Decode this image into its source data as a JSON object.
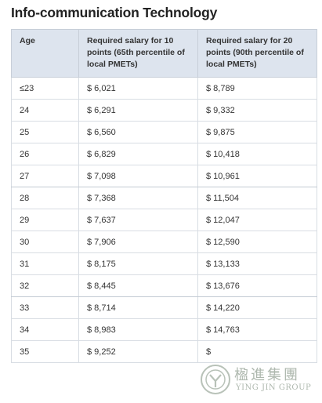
{
  "page": {
    "title": "Info-communication Technology"
  },
  "table": {
    "headers": [
      "Age",
      "Required salary for 10 points (65th percentile of local PMETs)",
      "Required salary for 20 points (90th percentile of local PMETs)"
    ],
    "rows": [
      [
        "≤23",
        "$ 6,021",
        "$ 8,789"
      ],
      [
        "24",
        "$ 6,291",
        "$ 9,332"
      ],
      [
        "25",
        "$ 6,560",
        "$ 9,875"
      ],
      [
        "26",
        "$ 6,829",
        "$ 10,418"
      ],
      [
        "27",
        "$ 7,098",
        "$ 10,961"
      ],
      [
        "28",
        "$ 7,368",
        "$ 11,504"
      ],
      [
        "29",
        "$ 7,637",
        "$ 12,047"
      ],
      [
        "30",
        "$ 7,906",
        "$ 12,590"
      ],
      [
        "31",
        "$ 8,175",
        "$ 13,133"
      ],
      [
        "32",
        "$ 8,445",
        "$ 13,676"
      ],
      [
        "33",
        "$ 8,714",
        "$ 14,220"
      ],
      [
        "34",
        "$ 8,983",
        "$ 14,763"
      ],
      [
        "35",
        "$ 9,252",
        "$"
      ]
    ]
  },
  "watermark": {
    "chinese": "楹進集團",
    "english": "YING JIN GROUP"
  }
}
